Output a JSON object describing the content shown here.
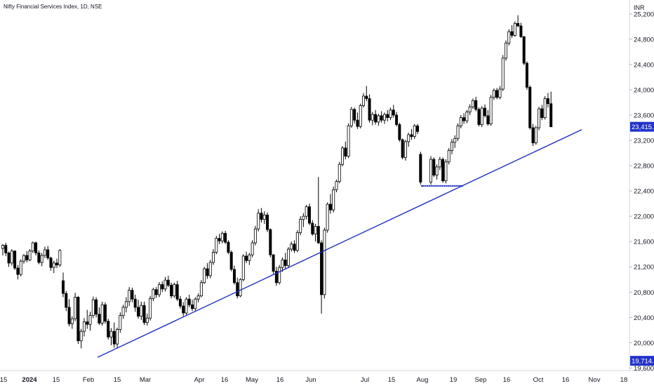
{
  "chart_title": "Nifty Financial Services Index, 1D, NSE",
  "chart_data": {
    "type": "candlestick",
    "title": "Nifty Financial Services Index, 1D, NSE",
    "y_unit": "INR",
    "ylim": [
      19560,
      25420
    ],
    "y_ticks": [
      "25,200.00",
      "24,800.00",
      "24,400.00",
      "24,000.00",
      "23,600.00",
      "23,200.00",
      "22,800.00",
      "22,400.00",
      "22,000.00",
      "21,600.00",
      "21,200.00",
      "20,800.00",
      "20,400.00",
      "20,000.00",
      "19,600.00"
    ],
    "x_ticks": [
      {
        "label": "15",
        "bold": false
      },
      {
        "label": "2024",
        "bold": true
      },
      {
        "label": "15",
        "bold": false
      },
      {
        "label": "Feb",
        "bold": false
      },
      {
        "label": "15",
        "bold": false
      },
      {
        "label": "Mar",
        "bold": false
      },
      {
        "label": "Apr",
        "bold": false
      },
      {
        "label": "16",
        "bold": false
      },
      {
        "label": "May",
        "bold": false
      },
      {
        "label": "16",
        "bold": false
      },
      {
        "label": "Jun",
        "bold": false
      },
      {
        "label": "Jul",
        "bold": false
      },
      {
        "label": "15",
        "bold": false
      },
      {
        "label": "Aug",
        "bold": false
      },
      {
        "label": "19",
        "bold": false
      },
      {
        "label": "Sep",
        "bold": false
      },
      {
        "label": "16",
        "bold": false
      },
      {
        "label": "Oct",
        "bold": false
      },
      {
        "label": "16",
        "bold": false
      },
      {
        "label": "Nov",
        "bold": false
      },
      {
        "label": "18",
        "bold": false
      }
    ],
    "last_price": "23,415.15",
    "low_marker": "19,714.15",
    "trendline": {
      "from": 19770,
      "to": 23370
    },
    "support_level": 22480,
    "colors": {
      "up": "#ffffff",
      "down": "#000000",
      "outline": "#000000",
      "trendline": "#1f2fc0",
      "badge_last": "#2233c8",
      "badge_low": "#2233c8"
    },
    "candles": [
      [
        21490,
        21560,
        21380,
        21540
      ],
      [
        21540,
        21580,
        21370,
        21420
      ],
      [
        21420,
        21440,
        21200,
        21260
      ],
      [
        21260,
        21480,
        21220,
        21450
      ],
      [
        21450,
        21460,
        21150,
        21180
      ],
      [
        21180,
        21230,
        21000,
        21080
      ],
      [
        21080,
        21320,
        21050,
        21290
      ],
      [
        21290,
        21400,
        21250,
        21380
      ],
      [
        21380,
        21450,
        21270,
        21310
      ],
      [
        21310,
        21480,
        21290,
        21450
      ],
      [
        21450,
        21600,
        21420,
        21580
      ],
      [
        21580,
        21600,
        21380,
        21420
      ],
      [
        21420,
        21460,
        21240,
        21270
      ],
      [
        21270,
        21420,
        21210,
        21380
      ],
      [
        21380,
        21520,
        21340,
        21470
      ],
      [
        21470,
        21530,
        21310,
        21340
      ],
      [
        21340,
        21360,
        21140,
        21190
      ],
      [
        21190,
        21300,
        21100,
        21260
      ],
      [
        21260,
        21330,
        21180,
        21230
      ],
      [
        21230,
        21480,
        21200,
        21460
      ],
      [
        20980,
        21110,
        20720,
        20780
      ],
      [
        20780,
        20820,
        20500,
        20560
      ],
      [
        20560,
        20690,
        20260,
        20300
      ],
      [
        20300,
        20420,
        20220,
        20380
      ],
      [
        20380,
        20790,
        20340,
        20720
      ],
      [
        20720,
        20740,
        19980,
        20030
      ],
      [
        20030,
        20220,
        19910,
        20180
      ],
      [
        20180,
        20390,
        20100,
        20330
      ],
      [
        20330,
        20520,
        20220,
        20290
      ],
      [
        20290,
        20490,
        20190,
        20430
      ],
      [
        20430,
        20730,
        20390,
        20680
      ],
      [
        20680,
        20720,
        20400,
        20450
      ],
      [
        20450,
        20560,
        20280,
        20310
      ],
      [
        20310,
        20650,
        20270,
        20600
      ],
      [
        20600,
        20640,
        20300,
        20340
      ],
      [
        20340,
        20380,
        20050,
        20090
      ],
      [
        20090,
        20230,
        19960,
        20180
      ],
      [
        20180,
        20320,
        19920,
        19980
      ],
      [
        19980,
        20240,
        19920,
        20210
      ],
      [
        20210,
        20480,
        20160,
        20430
      ],
      [
        20430,
        20600,
        20380,
        20560
      ],
      [
        20560,
        20720,
        20480,
        20650
      ],
      [
        20650,
        20880,
        20580,
        20830
      ],
      [
        20830,
        20870,
        20640,
        20690
      ],
      [
        20690,
        20760,
        20490,
        20560
      ],
      [
        20560,
        20680,
        20380,
        20420
      ],
      [
        20420,
        20650,
        20360,
        20590
      ],
      [
        20590,
        20650,
        20280,
        20320
      ],
      [
        20320,
        20460,
        20270,
        20390
      ],
      [
        20390,
        20740,
        20350,
        20700
      ],
      [
        20700,
        20870,
        20660,
        20840
      ],
      [
        20840,
        20880,
        20710,
        20760
      ],
      [
        20760,
        20960,
        20720,
        20920
      ],
      [
        20920,
        20970,
        20800,
        20850
      ],
      [
        20850,
        21040,
        20810,
        20990
      ],
      [
        20990,
        21060,
        20880,
        20910
      ],
      [
        20910,
        20950,
        20700,
        20740
      ],
      [
        20740,
        20950,
        20710,
        20920
      ],
      [
        20920,
        20980,
        20660,
        20690
      ],
      [
        20690,
        20740,
        20540,
        20580
      ],
      [
        20580,
        20640,
        20420,
        20470
      ],
      [
        20470,
        20720,
        20440,
        20690
      ],
      [
        20690,
        20760,
        20560,
        20600
      ],
      [
        20600,
        20680,
        20500,
        20540
      ],
      [
        20540,
        20720,
        20500,
        20690
      ],
      [
        20690,
        20780,
        20640,
        20740
      ],
      [
        20740,
        20990,
        20720,
        20950
      ],
      [
        20950,
        21200,
        20930,
        21170
      ],
      [
        21170,
        21260,
        21010,
        21060
      ],
      [
        21060,
        21310,
        21020,
        21270
      ],
      [
        21270,
        21480,
        21230,
        21430
      ],
      [
        21430,
        21690,
        21400,
        21650
      ],
      [
        21650,
        21720,
        21560,
        21610
      ],
      [
        21610,
        21760,
        21570,
        21730
      ],
      [
        21730,
        21770,
        21560,
        21590
      ],
      [
        21590,
        21620,
        21400,
        21430
      ],
      [
        21430,
        21460,
        21130,
        21160
      ],
      [
        21160,
        21220,
        20920,
        20950
      ],
      [
        20950,
        21030,
        20700,
        20740
      ],
      [
        20740,
        21020,
        20720,
        21000
      ],
      [
        21000,
        21400,
        20970,
        21370
      ],
      [
        21370,
        21440,
        21260,
        21300
      ],
      [
        21300,
        21420,
        21230,
        21390
      ],
      [
        21390,
        21620,
        21350,
        21580
      ],
      [
        21580,
        21850,
        21540,
        21800
      ],
      [
        21800,
        22110,
        21760,
        22050
      ],
      [
        22050,
        22130,
        21900,
        21950
      ],
      [
        21950,
        22080,
        21880,
        22020
      ],
      [
        22020,
        22060,
        21750,
        21790
      ],
      [
        21790,
        21810,
        21350,
        21390
      ],
      [
        21390,
        21400,
        21090,
        21130
      ],
      [
        21130,
        21200,
        20900,
        20950
      ],
      [
        20950,
        21230,
        20920,
        21190
      ],
      [
        21190,
        21350,
        21120,
        21310
      ],
      [
        21310,
        21420,
        21170,
        21220
      ],
      [
        21220,
        21510,
        21180,
        21480
      ],
      [
        21480,
        21600,
        21440,
        21560
      ],
      [
        21560,
        21620,
        21420,
        21460
      ],
      [
        21460,
        21780,
        21430,
        21740
      ],
      [
        21740,
        22000,
        21700,
        21950
      ],
      [
        21950,
        22050,
        21830,
        22000
      ],
      [
        22000,
        22180,
        21950,
        22150
      ],
      [
        22150,
        22200,
        21860,
        21890
      ],
      [
        21890,
        21940,
        21690,
        21720
      ],
      [
        21720,
        21880,
        21600,
        21840
      ],
      [
        21840,
        22620,
        21560,
        21580
      ],
      [
        21580,
        21620,
        20460,
        20760
      ],
      [
        20760,
        21820,
        20700,
        21780
      ],
      [
        21780,
        22220,
        21740,
        22190
      ],
      [
        22190,
        22350,
        22040,
        22100
      ],
      [
        22100,
        22470,
        22060,
        22420
      ],
      [
        22420,
        22580,
        22380,
        22550
      ],
      [
        22550,
        22860,
        22520,
        22820
      ],
      [
        22820,
        23110,
        22790,
        23080
      ],
      [
        23080,
        23180,
        22900,
        22950
      ],
      [
        22950,
        23470,
        22920,
        23430
      ],
      [
        23430,
        23730,
        23400,
        23690
      ],
      [
        23690,
        23720,
        23470,
        23520
      ],
      [
        23520,
        23640,
        23380,
        23420
      ],
      [
        23420,
        23780,
        23390,
        23750
      ],
      [
        23750,
        23950,
        23720,
        23900
      ],
      [
        23900,
        24060,
        23820,
        23860
      ],
      [
        23860,
        23930,
        23480,
        23520
      ],
      [
        23520,
        23650,
        23440,
        23610
      ],
      [
        23610,
        23680,
        23450,
        23490
      ],
      [
        23490,
        23620,
        23430,
        23590
      ],
      [
        23590,
        23660,
        23480,
        23520
      ],
      [
        23520,
        23640,
        23460,
        23610
      ],
      [
        23610,
        23680,
        23500,
        23560
      ],
      [
        23560,
        23720,
        23520,
        23680
      ],
      [
        23680,
        23760,
        23560,
        23600
      ],
      [
        23600,
        23650,
        23420,
        23450
      ],
      [
        23450,
        23480,
        23180,
        23210
      ],
      [
        23210,
        23230,
        22900,
        22930
      ],
      [
        22930,
        23210,
        22880,
        23180
      ],
      [
        23180,
        23320,
        23100,
        23290
      ],
      [
        23290,
        23380,
        23210,
        23260
      ],
      [
        23260,
        23460,
        23220,
        23430
      ],
      [
        23430,
        23460,
        23300,
        23340
      ],
      [
        22980,
        23020,
        22500,
        22540
      ],
      [
        22540,
        22950,
        22500,
        22900
      ],
      [
        22900,
        22930,
        22620,
        22650
      ],
      [
        22650,
        22820,
        22580,
        22780
      ],
      [
        22780,
        22940,
        22730,
        22900
      ],
      [
        22900,
        22930,
        22530,
        22560
      ],
      [
        22560,
        22900,
        22520,
        22860
      ],
      [
        22860,
        23080,
        22820,
        23040
      ],
      [
        23040,
        23220,
        22980,
        23170
      ],
      [
        23170,
        23280,
        23080,
        23230
      ],
      [
        23230,
        23470,
        23190,
        23430
      ],
      [
        23430,
        23600,
        23390,
        23560
      ],
      [
        23560,
        23630,
        23460,
        23510
      ],
      [
        23510,
        23680,
        23470,
        23650
      ],
      [
        23650,
        23770,
        23600,
        23730
      ],
      [
        23730,
        23860,
        23700,
        23830
      ],
      [
        23830,
        23890,
        23660,
        23690
      ],
      [
        23690,
        23720,
        23420,
        23450
      ],
      [
        23450,
        23740,
        23410,
        23710
      ],
      [
        23710,
        23770,
        23560,
        23590
      ],
      [
        23590,
        23680,
        23430,
        23460
      ],
      [
        23460,
        23920,
        23430,
        23880
      ],
      [
        23880,
        24020,
        23840,
        23990
      ],
      [
        23990,
        24030,
        23850,
        23880
      ],
      [
        23880,
        24060,
        23850,
        24010
      ],
      [
        24010,
        24550,
        23980,
        24500
      ],
      [
        24500,
        24780,
        24460,
        24740
      ],
      [
        24740,
        24960,
        24700,
        24920
      ],
      [
        24920,
        25020,
        24820,
        24860
      ],
      [
        24860,
        25080,
        24840,
        25050
      ],
      [
        25050,
        25180,
        24990,
        25010
      ],
      [
        25010,
        25060,
        24820,
        24840
      ],
      [
        24840,
        24850,
        24390,
        24420
      ],
      [
        24420,
        24450,
        24000,
        24040
      ],
      [
        24040,
        24070,
        23370,
        23400
      ],
      [
        23400,
        23460,
        23110,
        23160
      ],
      [
        23160,
        23430,
        23130,
        23400
      ],
      [
        23400,
        23730,
        23360,
        23700
      ],
      [
        23700,
        23760,
        23520,
        23560
      ],
      [
        23560,
        23900,
        23530,
        23860
      ],
      [
        23860,
        23950,
        23720,
        23780
      ],
      [
        23780,
        23970,
        23410,
        23415
      ]
    ]
  }
}
